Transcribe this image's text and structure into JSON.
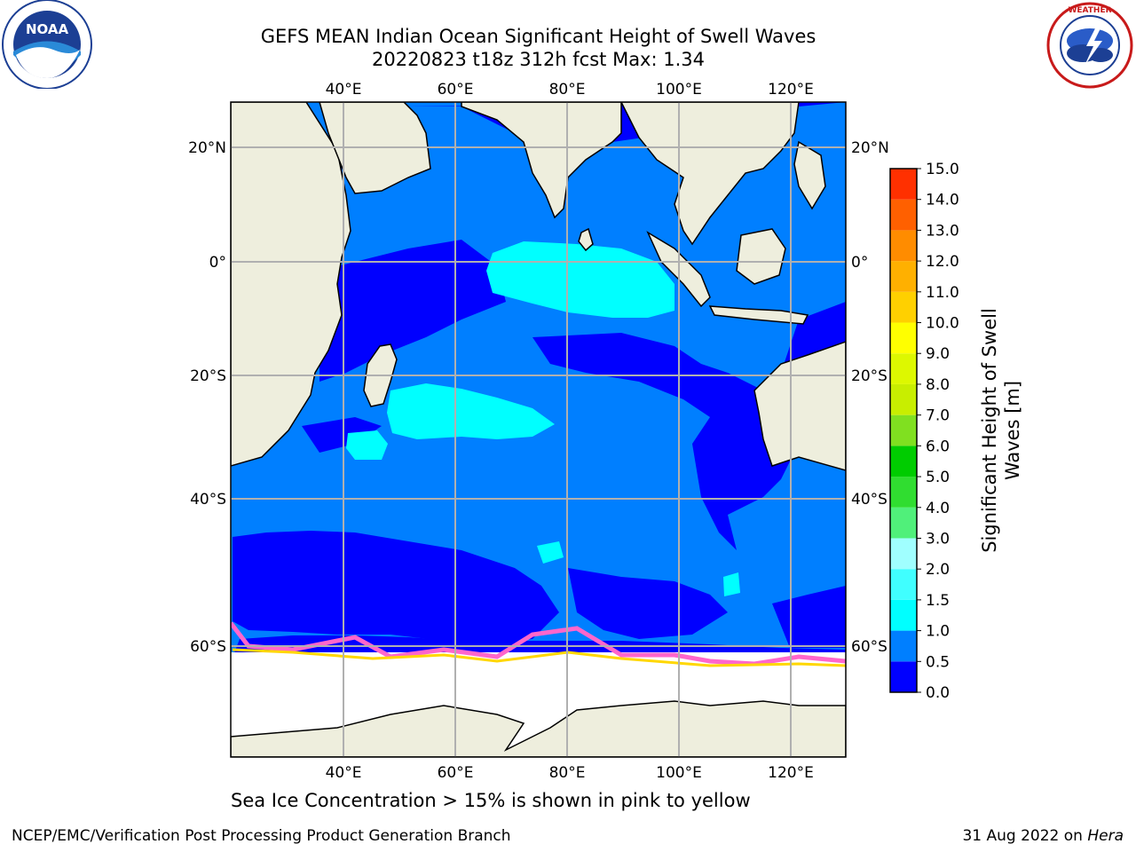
{
  "title_line1": "GEFS MEAN Indian Ocean Significant Height of Swell Waves",
  "title_line2": "20220823 t18z 312h fcst   Max: 1.34",
  "note": "Sea Ice Concentration > 15% is shown in pink to yellow",
  "footer_left": "NCEP/EMC/Verification Post Processing Product Generation Branch",
  "footer_date": "31 Aug 2022 on ",
  "footer_machine": "Hera",
  "logo_left_text": "NOAA",
  "lon_ticks": [
    "40°E",
    "60°E",
    "80°E",
    "100°E",
    "120°E"
  ],
  "lat_ticks_left": [
    "20°N",
    "0°",
    "20°S",
    "40°S",
    "60°S"
  ],
  "lat_ticks_right": [
    "20°N",
    "0°",
    "20°S",
    "40°S",
    "60°S"
  ],
  "colorbar": {
    "label": "Significant Height of Swell Waves [m]",
    "ticks": [
      "0.0",
      "0.5",
      "1.0",
      "1.5",
      "2.0",
      "3.0",
      "4.0",
      "5.0",
      "6.0",
      "7.0",
      "8.0",
      "9.0",
      "10.0",
      "11.0",
      "12.0",
      "13.0",
      "14.0",
      "15.0"
    ],
    "colors": [
      "#0000ff",
      "#007fff",
      "#00ffff",
      "#40ffff",
      "#a0ffff",
      "#50f07a",
      "#30dd30",
      "#00cc00",
      "#80e020",
      "#c8ee00",
      "#ddf800",
      "#ffff00",
      "#ffd000",
      "#ffb000",
      "#ff8c00",
      "#ff6000",
      "#ff3000",
      "#ff0000"
    ]
  },
  "colors": {
    "land": "#eeeedd",
    "ice_bg": "#ffffff",
    "grid": "#b0b0b0"
  }
}
